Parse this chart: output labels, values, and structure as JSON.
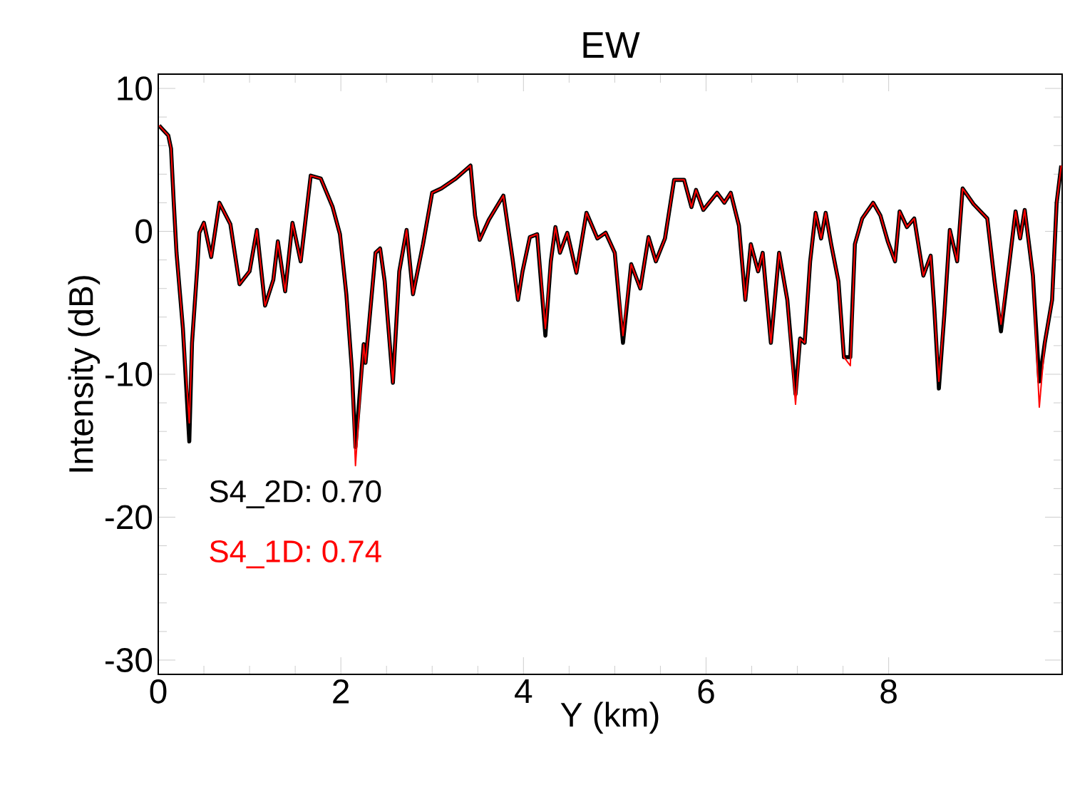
{
  "chart_data": {
    "type": "line",
    "title": "EW",
    "xlabel": "Y (km)",
    "ylabel": "Intensity (dB)",
    "xlim": [
      0,
      9.9
    ],
    "ylim": [
      -31,
      11
    ],
    "xticks": [
      0,
      2,
      4,
      6,
      8
    ],
    "yticks": [
      -30,
      -20,
      -10,
      0,
      10
    ],
    "legend": "bottom left",
    "grid": false,
    "x": [
      0.01,
      0.11,
      0.14,
      0.17,
      0.2,
      0.27,
      0.34,
      0.37,
      0.43,
      0.45,
      0.5,
      0.58,
      0.67,
      0.79,
      0.89,
      1.0,
      1.08,
      1.17,
      1.26,
      1.31,
      1.39,
      1.47,
      1.56,
      1.67,
      1.78,
      1.91,
      1.99,
      2.06,
      2.12,
      2.16,
      2.25,
      2.27,
      2.38,
      2.43,
      2.48,
      2.57,
      2.64,
      2.72,
      2.79,
      2.9,
      3.0,
      3.1,
      3.26,
      3.42,
      3.47,
      3.52,
      3.62,
      3.78,
      3.88,
      3.94,
      3.99,
      4.07,
      4.15,
      4.24,
      4.3,
      4.35,
      4.4,
      4.48,
      4.58,
      4.69,
      4.81,
      4.9,
      5.0,
      5.09,
      5.18,
      5.28,
      5.37,
      5.45,
      5.55,
      5.65,
      5.76,
      5.84,
      5.89,
      5.97,
      6.12,
      6.2,
      6.27,
      6.36,
      6.43,
      6.49,
      6.57,
      6.62,
      6.71,
      6.8,
      6.89,
      6.98,
      7.03,
      7.08,
      7.14,
      7.2,
      7.26,
      7.31,
      7.37,
      7.45,
      7.51,
      7.58,
      7.63,
      7.71,
      7.83,
      7.91,
      7.99,
      8.07,
      8.12,
      8.2,
      8.28,
      8.38,
      8.46,
      8.5,
      8.55,
      8.61,
      8.67,
      8.75,
      8.81,
      8.93,
      9.08,
      9.16,
      9.23,
      9.32,
      9.39,
      9.44,
      9.49,
      9.58,
      9.65,
      9.71,
      9.79,
      9.84,
      9.89
    ],
    "series": [
      {
        "name": "S4_2D: 0.70",
        "color": "#000000",
        "values": [
          7.4,
          6.7,
          5.8,
          2.0,
          -1.5,
          -6.8,
          -14.7,
          -7.8,
          -2.3,
          -0.1,
          0.6,
          -1.8,
          2.0,
          0.5,
          -3.7,
          -2.8,
          0.1,
          -5.2,
          -3.4,
          -0.7,
          -4.2,
          0.6,
          -2.1,
          3.9,
          3.7,
          1.7,
          -0.2,
          -4.4,
          -9.6,
          -15.1,
          -7.9,
          -9.2,
          -1.5,
          -1.2,
          -3.5,
          -10.6,
          -2.8,
          0.1,
          -4.4,
          -0.9,
          2.7,
          3.0,
          3.7,
          4.6,
          1.1,
          -0.6,
          0.8,
          2.5,
          -1.9,
          -4.8,
          -2.8,
          -0.4,
          -0.2,
          -7.3,
          -2.1,
          0.3,
          -1.5,
          -0.1,
          -2.9,
          1.3,
          -0.5,
          -0.1,
          -1.5,
          -7.8,
          -2.3,
          -4.0,
          -0.4,
          -2.1,
          -0.5,
          3.6,
          3.6,
          1.7,
          2.9,
          1.5,
          2.7,
          2.0,
          2.7,
          0.4,
          -4.8,
          -0.9,
          -2.8,
          -1.5,
          -7.8,
          -1.5,
          -4.8,
          -11.4,
          -7.5,
          -7.8,
          -2.1,
          1.3,
          -0.5,
          1.3,
          -0.9,
          -3.5,
          -8.8,
          -8.8,
          -0.9,
          0.9,
          2.0,
          1.1,
          -0.7,
          -2.1,
          1.4,
          0.3,
          0.9,
          -3.1,
          -1.7,
          -5.4,
          -11.0,
          -5.8,
          0.1,
          -2.1,
          3.0,
          1.9,
          0.9,
          -3.5,
          -7.0,
          -2.3,
          1.4,
          -0.5,
          1.5,
          -3.1,
          -10.5,
          -7.8,
          -4.8,
          2.0,
          4.6
        ]
      },
      {
        "name": "S4_1D: 0.74",
        "color": "#ff0000",
        "values": [
          7.4,
          6.7,
          5.8,
          2.0,
          -1.5,
          -6.8,
          -13.4,
          -7.8,
          -2.3,
          -0.1,
          0.6,
          -1.8,
          2.0,
          0.5,
          -3.7,
          -2.8,
          0.1,
          -5.2,
          -3.4,
          -0.7,
          -4.2,
          0.6,
          -2.1,
          3.9,
          3.7,
          1.7,
          -0.2,
          -4.4,
          -9.6,
          -16.4,
          -7.9,
          -9.2,
          -1.5,
          -1.2,
          -3.5,
          -10.6,
          -2.8,
          0.1,
          -4.4,
          -0.9,
          2.7,
          3.0,
          3.7,
          4.6,
          1.1,
          -0.6,
          0.8,
          2.5,
          -1.9,
          -4.8,
          -2.8,
          -0.4,
          -0.2,
          -6.8,
          -2.1,
          0.3,
          -1.5,
          -0.1,
          -2.9,
          1.3,
          -0.5,
          -0.1,
          -1.5,
          -7.3,
          -2.3,
          -4.0,
          -0.4,
          -2.1,
          -0.5,
          3.6,
          3.6,
          1.7,
          2.9,
          1.5,
          2.7,
          2.0,
          2.7,
          0.4,
          -4.8,
          -0.9,
          -2.8,
          -1.5,
          -7.8,
          -1.5,
          -4.8,
          -12.1,
          -7.5,
          -7.8,
          -2.1,
          1.3,
          -0.5,
          1.3,
          -0.9,
          -3.5,
          -8.8,
          -9.4,
          -0.9,
          0.9,
          2.0,
          1.1,
          -0.7,
          -2.1,
          1.4,
          0.3,
          0.9,
          -3.1,
          -1.7,
          -5.4,
          -10.5,
          -5.8,
          0.1,
          -2.1,
          3.0,
          1.9,
          0.9,
          -3.5,
          -6.5,
          -2.3,
          1.4,
          -0.5,
          1.5,
          -3.1,
          -12.3,
          -7.8,
          -4.8,
          2.0,
          4.6
        ]
      }
    ]
  }
}
